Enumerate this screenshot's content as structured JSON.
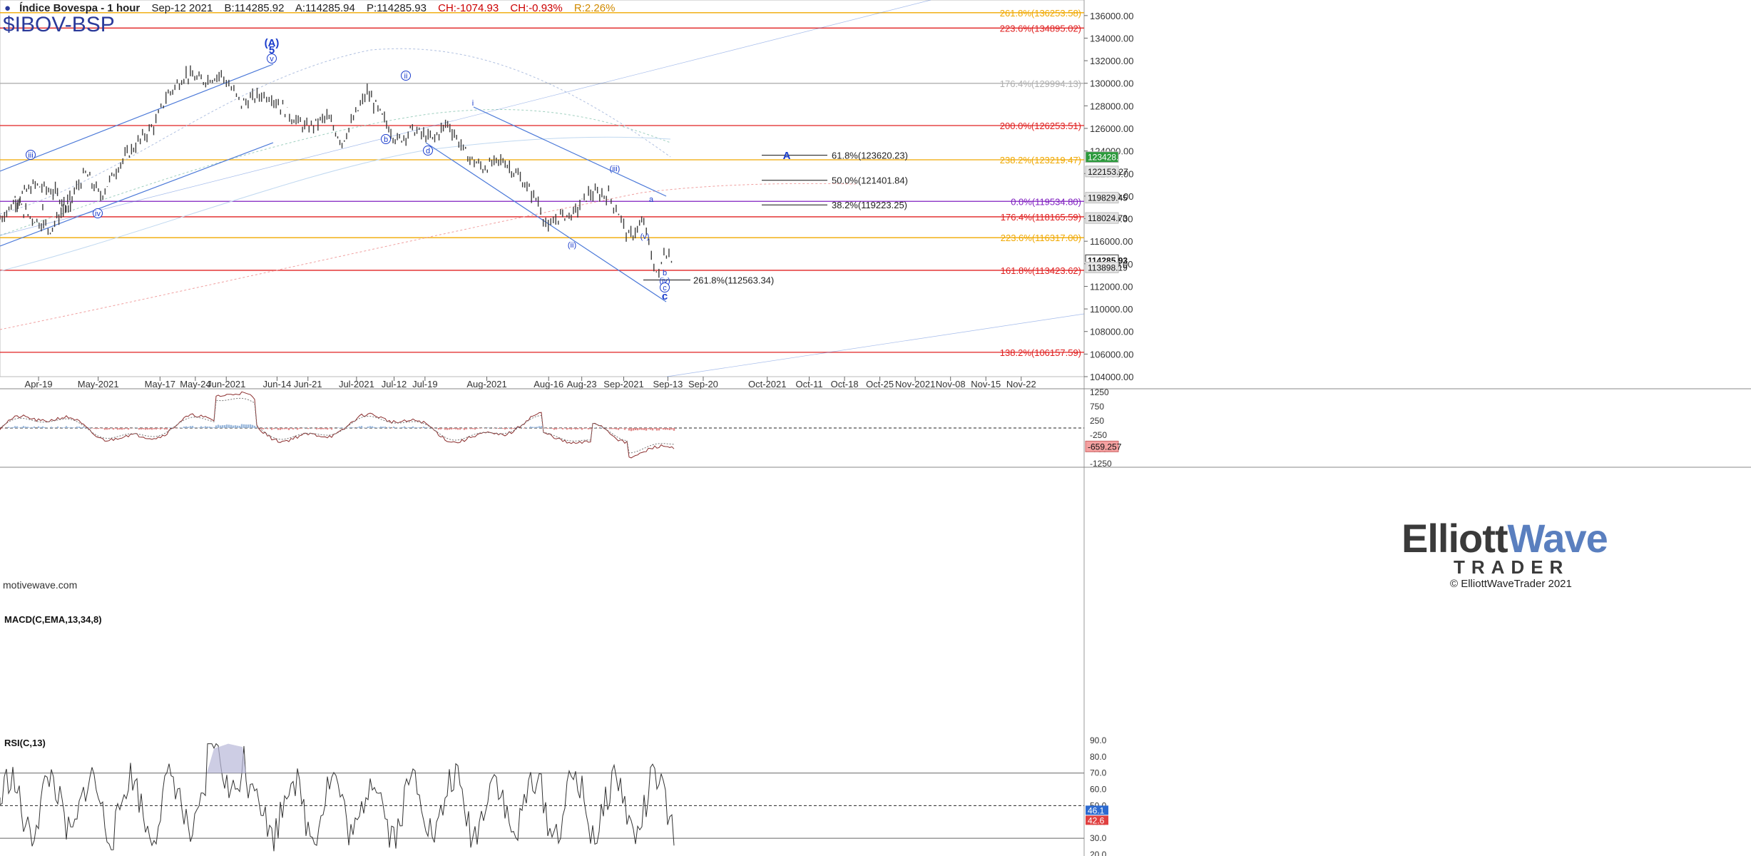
{
  "header": {
    "title": "Índice Bovespa - 1 hour",
    "symbol": "$IBOV-BSP",
    "date": "Sep-12 2021",
    "bid": "B:114285.92",
    "ask": "A:114285.94",
    "price": "P:114285.93",
    "change": "CH:-1074.93",
    "change_pct": "CH:-0.93%",
    "range": "R:2.26%"
  },
  "watermark": "motivewave.com",
  "branding": {
    "logo_left": "Elliott",
    "logo_right": "Wave",
    "trader": "TRADER",
    "copyright": "© ElliottWaveTrader 2021"
  },
  "colors": {
    "bar": "#3c3c3c",
    "channel": "#4a78d8",
    "wave_label": "#1a3ccc",
    "fib_red": "#e02020",
    "fib_orange": "#f0a800",
    "fib_purple": "#8020c0",
    "fib_gray": "#b0b0b0",
    "macd_up": "#9ab8dc",
    "macd_down": "#e08888",
    "rsi_line": "#333333"
  },
  "chart_data": [
    {
      "type": "line",
      "title": "Índice Bovespa - 1 hour",
      "xlabel": "",
      "ylabel": "",
      "ylim": [
        104000,
        137000
      ],
      "grid": false,
      "x_ticks": [
        "Apr-19",
        "May-2021",
        "May-17",
        "May-24",
        "Jun-2021",
        "Jun-14",
        "Jun-21",
        "Jul-2021",
        "Jul-12",
        "Jul-19",
        "Aug-2021",
        "Aug-16",
        "Aug-23",
        "Sep-2021",
        "Sep-13",
        "Sep-20",
        "Oct-2021",
        "Oct-11",
        "Oct-18",
        "Oct-25",
        "Nov-2021",
        "Nov-08",
        "Nov-15",
        "Nov-22"
      ],
      "y_ticks": [
        "136000.00",
        "134000.00",
        "132000.00",
        "130000.00",
        "128000.00",
        "126000.00",
        "124000.00",
        "122000.00",
        "120000.00",
        "118000.00",
        "116000.00",
        "114000.00",
        "112000.00",
        "110000.00",
        "108000.00",
        "106000.00",
        "104000.00"
      ],
      "series": [
        {
          "values": [
            {
              "x": "Apr-16",
              "y": 118000
            },
            {
              "x": "Apr-20",
              "y": 120000
            },
            {
              "x": "Apr-23",
              "y": 121000
            },
            {
              "x": "Apr-27",
              "y": 120300
            },
            {
              "x": "Apr-30",
              "y": 119000
            },
            {
              "x": "May-04",
              "y": 119500
            },
            {
              "x": "May-07",
              "y": 118200
            },
            {
              "x": "May-11",
              "y": 117100
            },
            {
              "x": "May-14",
              "y": 119000
            },
            {
              "x": "May-18",
              "y": 122000
            },
            {
              "x": "May-21",
              "y": 120000
            },
            {
              "x": "May-25",
              "y": 123000
            },
            {
              "x": "May-28",
              "y": 124500
            },
            {
              "x": "Jun-01",
              "y": 126500
            },
            {
              "x": "Jun-03",
              "y": 128800
            },
            {
              "x": "Jun-07",
              "y": 130800
            },
            {
              "x": "Jun-10",
              "y": 130200
            },
            {
              "x": "Jun-14",
              "y": 130800
            },
            {
              "x": "Jun-16",
              "y": 129500
            },
            {
              "x": "Jun-18",
              "y": 128200
            },
            {
              "x": "Jun-22",
              "y": 129000
            },
            {
              "x": "Jun-24",
              "y": 128800
            },
            {
              "x": "Jun-28",
              "y": 127000
            },
            {
              "x": "Jul-01",
              "y": 126000
            },
            {
              "x": "Jul-05",
              "y": 127000
            },
            {
              "x": "Jul-08",
              "y": 124800
            },
            {
              "x": "Jul-13",
              "y": 129200
            },
            {
              "x": "Jul-16",
              "y": 127000
            },
            {
              "x": "Jul-19",
              "y": 124900
            },
            {
              "x": "Jul-22",
              "y": 125900
            },
            {
              "x": "Jul-26",
              "y": 125000
            },
            {
              "x": "Jul-29",
              "y": 126500
            },
            {
              "x": "Aug-02",
              "y": 123500
            },
            {
              "x": "Aug-05",
              "y": 122500
            },
            {
              "x": "Aug-09",
              "y": 123200
            },
            {
              "x": "Aug-12",
              "y": 121800
            },
            {
              "x": "Aug-16",
              "y": 119500
            },
            {
              "x": "Aug-18",
              "y": 117000
            },
            {
              "x": "Aug-20",
              "y": 118200
            },
            {
              "x": "Aug-23",
              "y": 118400
            },
            {
              "x": "Aug-26",
              "y": 120200
            },
            {
              "x": "Aug-30",
              "y": 120100
            },
            {
              "x": "Sep-01",
              "y": 118500
            },
            {
              "x": "Sep-03",
              "y": 116300
            },
            {
              "x": "Sep-06",
              "y": 117700
            },
            {
              "x": "Sep-08",
              "y": 113800
            },
            {
              "x": "Sep-09",
              "y": 112900
            },
            {
              "x": "Sep-10",
              "y": 115200
            },
            {
              "x": "Sep-12",
              "y": 114285.93
            }
          ]
        }
      ],
      "fib_levels_right": [
        {
          "label": "261.8%(136253.58)",
          "color": "orange"
        },
        {
          "label": "223.6%(134895.02)",
          "color": "red"
        },
        {
          "label": "176.4%(129994.13)",
          "color": "gray"
        },
        {
          "label": "200.0%(126253.51)",
          "color": "red"
        },
        {
          "label": "238.2%(123219.47)",
          "color": "orange"
        },
        {
          "label": "0.0%(119534.80)",
          "color": "purple"
        },
        {
          "label": "176.4%(118165.59)",
          "color": "red"
        },
        {
          "label": "223.6%(116317.00)",
          "color": "orange"
        },
        {
          "label": "161.8%(113423.62)",
          "color": "red"
        },
        {
          "label": "138.2%(106157.59)",
          "color": "red"
        }
      ],
      "fib_levels_mid": [
        "61.8%(123620.23)",
        "50.0%(121401.84)",
        "38.2%(119223.25)",
        "261.8%(112563.34)"
      ],
      "price_tags": [
        {
          "label": "123428.21",
          "kind": "green"
        },
        {
          "label": "122153.27",
          "kind": "gray"
        },
        {
          "label": "119829.45",
          "kind": "gray"
        },
        {
          "label": "118024.73",
          "kind": "gray"
        },
        {
          "label": "114285.93",
          "kind": "current"
        },
        {
          "label": "113898.19",
          "kind": "gray"
        }
      ],
      "wave_labels": [
        "(A)",
        "5",
        "v",
        "iii",
        "iv",
        "ii",
        "b",
        "d",
        "i",
        "(ii)",
        "(iii)",
        "(iv)",
        "(v)",
        "a",
        "b",
        "c",
        "c",
        "A",
        "B"
      ]
    },
    {
      "type": "line",
      "title": "MACD(C,EMA,13,34,8)",
      "y_ticks": [
        "1250",
        "750",
        "250",
        "-250",
        "-750",
        "-1250"
      ],
      "current_value": "-659.257"
    },
    {
      "type": "line",
      "title": "RSI(C,13)",
      "y_ticks": [
        "90.0",
        "80.0",
        "70.0",
        "60.0",
        "50.0",
        "40.0",
        "30.0",
        "20.0"
      ],
      "current_values": [
        "46.1",
        "42.6"
      ]
    }
  ]
}
